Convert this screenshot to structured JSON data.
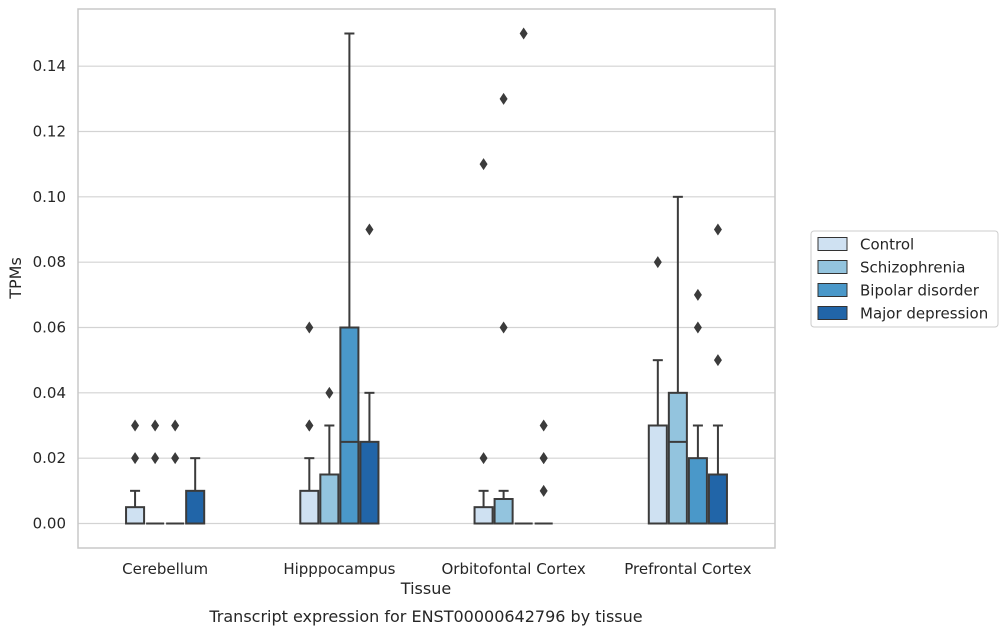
{
  "caption": "Transcript expression for ENST00000642796 by tissue",
  "chart_data": {
    "type": "box",
    "title": "",
    "xlabel": "Tissue",
    "ylabel": "TPMs",
    "ylim": [
      -0.0075,
      0.1575
    ],
    "yticks": [
      0.0,
      0.02,
      0.04,
      0.06,
      0.08,
      0.1,
      0.12,
      0.14
    ],
    "ytick_labels": [
      "0.00",
      "0.02",
      "0.04",
      "0.06",
      "0.08",
      "0.10",
      "0.12",
      "0.14"
    ],
    "grid": "horizontal",
    "legend_position": "right",
    "categories": [
      "Cerebellum",
      "Hipppocampus",
      "Orbitofontal Cortex",
      "Prefrontal Cortex"
    ],
    "series": [
      {
        "name": "Control",
        "color": "#cfe1f2",
        "boxes": [
          {
            "q1": 0,
            "median": 0,
            "q3": 0.005,
            "whisker_low": 0,
            "whisker_high": 0.01,
            "outliers": [
              0.02,
              0.03
            ]
          },
          {
            "q1": 0,
            "median": 0,
            "q3": 0.01,
            "whisker_low": 0,
            "whisker_high": 0.02,
            "outliers": [
              0.03,
              0.03,
              0.06
            ]
          },
          {
            "q1": 0,
            "median": 0,
            "q3": 0.005,
            "whisker_low": 0,
            "whisker_high": 0.01,
            "outliers": [
              0.02,
              0.11
            ]
          },
          {
            "q1": 0,
            "median": 0,
            "q3": 0.03,
            "whisker_low": 0,
            "whisker_high": 0.05,
            "outliers": [
              0.08
            ]
          }
        ]
      },
      {
        "name": "Schizophrenia",
        "color": "#93c4de",
        "boxes": [
          {
            "q1": 0,
            "median": 0,
            "q3": 0,
            "whisker_low": 0,
            "whisker_high": 0,
            "outliers": [
              0.02,
              0.03
            ]
          },
          {
            "q1": 0,
            "median": 0,
            "q3": 0.015,
            "whisker_low": 0,
            "whisker_high": 0.03,
            "outliers": [
              0.04
            ]
          },
          {
            "q1": 0,
            "median": 0,
            "q3": 0.0075,
            "whisker_low": 0,
            "whisker_high": 0.01,
            "outliers": [
              0.06,
              0.13
            ]
          },
          {
            "q1": 0,
            "median": 0.025,
            "q3": 0.04,
            "whisker_low": 0,
            "whisker_high": 0.1,
            "outliers": []
          }
        ]
      },
      {
        "name": "Bipolar disorder",
        "color": "#4a98c9",
        "boxes": [
          {
            "q1": 0,
            "median": 0,
            "q3": 0,
            "whisker_low": 0,
            "whisker_high": 0,
            "outliers": [
              0.02,
              0.03
            ]
          },
          {
            "q1": 0,
            "median": 0.025,
            "q3": 0.06,
            "whisker_low": 0,
            "whisker_high": 0.15,
            "outliers": []
          },
          {
            "q1": 0,
            "median": 0,
            "q3": 0,
            "whisker_low": 0,
            "whisker_high": 0,
            "outliers": [
              0.15
            ]
          },
          {
            "q1": 0,
            "median": 0,
            "q3": 0.02,
            "whisker_low": 0,
            "whisker_high": 0.03,
            "outliers": [
              0.06,
              0.07
            ]
          }
        ]
      },
      {
        "name": "Major depression",
        "color": "#2165a8",
        "boxes": [
          {
            "q1": 0,
            "median": 0,
            "q3": 0.01,
            "whisker_low": 0,
            "whisker_high": 0.02,
            "outliers": []
          },
          {
            "q1": 0,
            "median": 0,
            "q3": 0.025,
            "whisker_low": 0,
            "whisker_high": 0.04,
            "outliers": [
              0.09
            ]
          },
          {
            "q1": 0,
            "median": 0,
            "q3": 0,
            "whisker_low": 0,
            "whisker_high": 0,
            "outliers": [
              0.01,
              0.02,
              0.02,
              0.03
            ]
          },
          {
            "q1": 0,
            "median": 0,
            "q3": 0.015,
            "whisker_low": 0,
            "whisker_high": 0.03,
            "outliers": [
              0.05,
              0.09
            ]
          }
        ]
      }
    ]
  }
}
